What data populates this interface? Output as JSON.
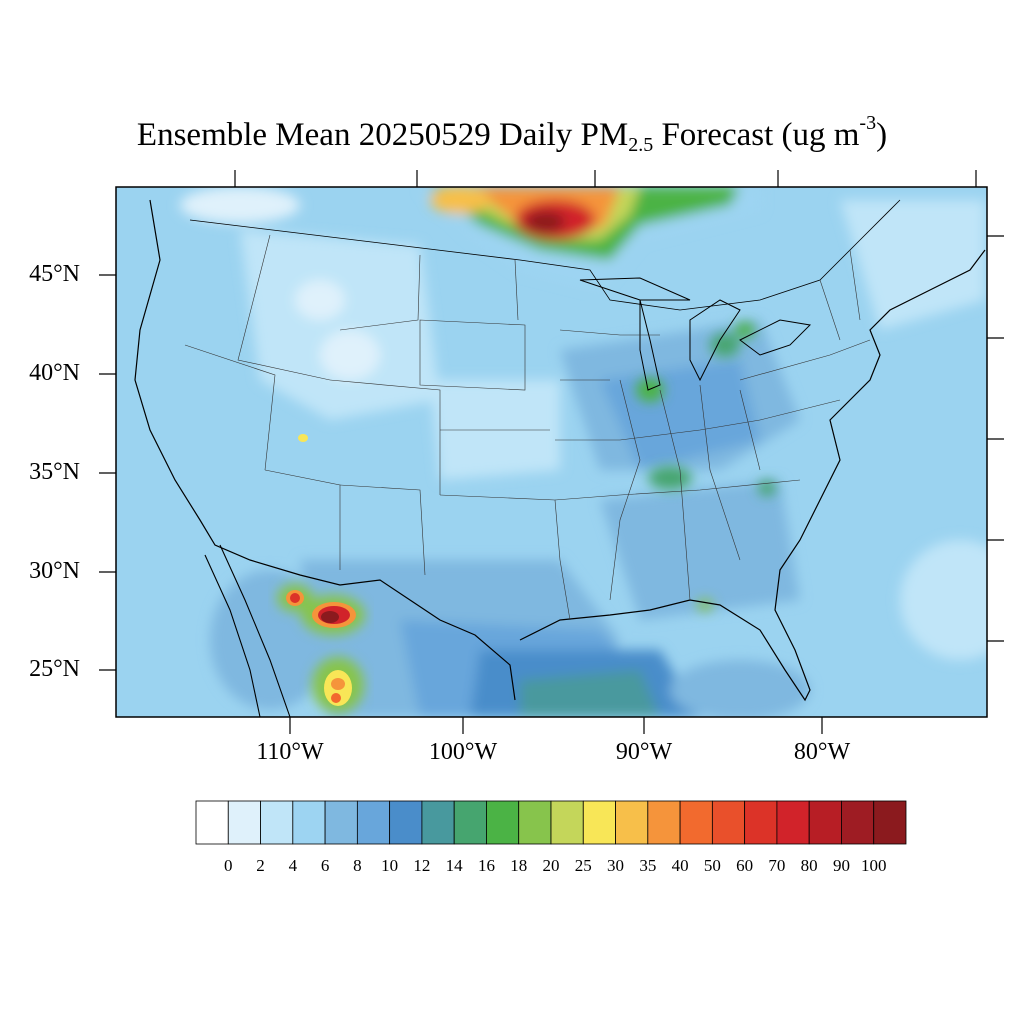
{
  "title": {
    "main": "Ensemble Mean 20250529 Daily PM",
    "subscript": "2.5",
    "rest": " Forecast (ug m",
    "superscript": "-3",
    "close": ")"
  },
  "map": {
    "lat_labels": [
      "45°N",
      "40°N",
      "35°N",
      "30°N",
      "25°N"
    ],
    "lon_labels": [
      "110°W",
      "100°W",
      "90°W",
      "80°W"
    ],
    "background_color": "#9bd3f0"
  },
  "colorbar": {
    "levels": [
      "0",
      "2",
      "4",
      "6",
      "8",
      "10",
      "12",
      "14",
      "16",
      "18",
      "20",
      "25",
      "30",
      "35",
      "40",
      "50",
      "60",
      "70",
      "80",
      "90",
      "100"
    ],
    "colors": [
      "#ffffff",
      "#dff1fb",
      "#c0e5f8",
      "#9dd4f2",
      "#7fb8e0",
      "#68a6db",
      "#4a8dca",
      "#48999e",
      "#46a56f",
      "#4bb345",
      "#87c44c",
      "#c4d65a",
      "#f8e657",
      "#f7bf4a",
      "#f5943b",
      "#f26a2e",
      "#e9502b",
      "#dc3328",
      "#d1232a",
      "#b71e25",
      "#9e1c23",
      "#8b1a1e"
    ]
  },
  "chart_data": {
    "type": "heatmap",
    "variable": "PM2.5",
    "units": "ug m-3",
    "date": "20250529",
    "hotspots": [
      {
        "lat": 49.0,
        "lon": -94.5,
        "peak": 80
      },
      {
        "lat": 49.3,
        "lon": -99.5,
        "peak": 40
      },
      {
        "lat": 49.2,
        "lon": -90.0,
        "peak": 20
      },
      {
        "lat": 28.0,
        "lon": -107.2,
        "peak": 90
      },
      {
        "lat": 28.6,
        "lon": -110.2,
        "peak": 60
      },
      {
        "lat": 24.3,
        "lon": -106.9,
        "peak": 45
      },
      {
        "lat": 36.7,
        "lon": -110.5,
        "peak": 30
      },
      {
        "lat": 39.4,
        "lon": -89.8,
        "peak": 20
      },
      {
        "lat": 40.7,
        "lon": -84.0,
        "peak": 18
      },
      {
        "lat": 35.0,
        "lon": -88.5,
        "peak": 18
      },
      {
        "lat": 30.5,
        "lon": -85.5,
        "peak": 20
      },
      {
        "lat": 24.0,
        "lon": -94.0,
        "peak": 14
      }
    ]
  }
}
